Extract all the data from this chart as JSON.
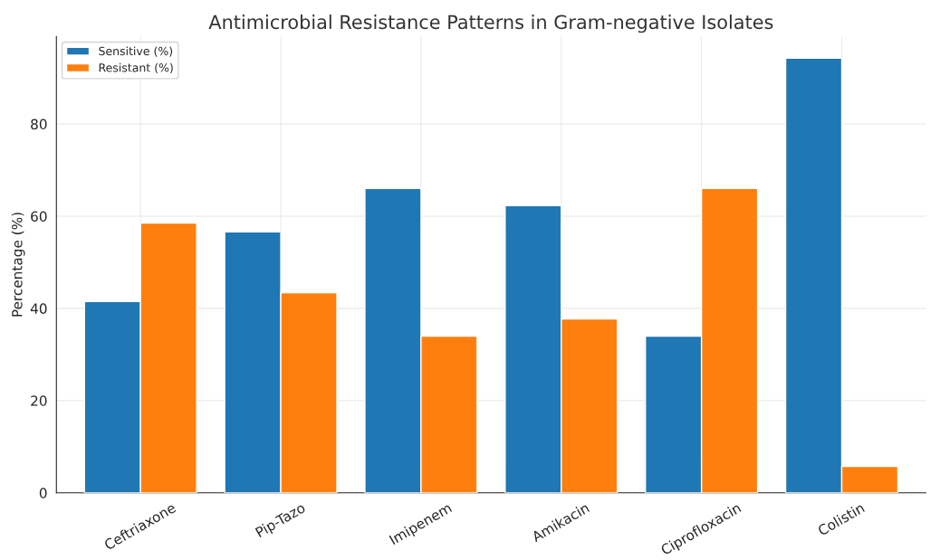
{
  "chart_data": {
    "type": "bar",
    "title": "Antimicrobial Resistance Patterns in Gram-negative Isolates",
    "ylabel": "Percentage (%)",
    "categories": [
      "Ceftriaxone",
      "Pip-Tazo",
      "Imipenem",
      "Amikacin",
      "Ciprofloxacin",
      "Colistin"
    ],
    "series": [
      {
        "name": "Sensitive (%)",
        "color": "#1f77b4",
        "values": [
          41.5,
          56.6,
          66,
          62.3,
          34,
          94.3
        ]
      },
      {
        "name": "Resistant (%)",
        "color": "#ff7f0e",
        "values": [
          58.5,
          43.4,
          34,
          37.7,
          66,
          5.7
        ]
      }
    ],
    "ylim": [
      0,
      99
    ],
    "yticks": [
      0,
      20,
      40,
      60,
      80
    ],
    "grid": true,
    "legend": "top left"
  }
}
